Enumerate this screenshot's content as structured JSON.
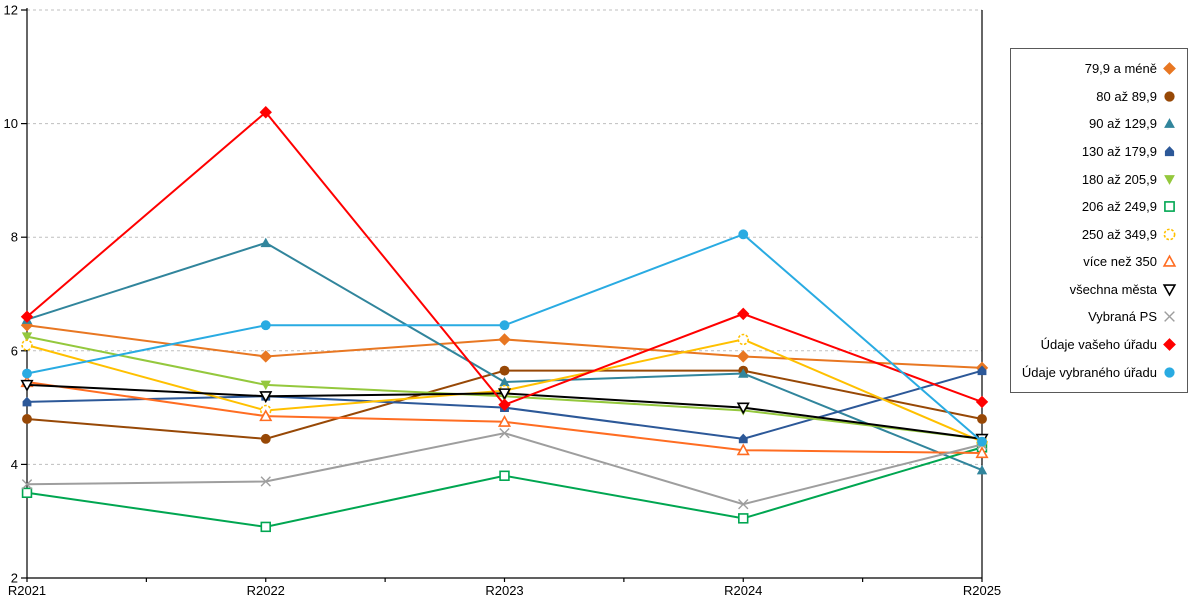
{
  "chart_data": {
    "type": "line",
    "title": "",
    "xlabel": "",
    "ylabel": "",
    "categories": [
      "R2021",
      "R2022",
      "R2023",
      "R2024",
      "R2025"
    ],
    "y_axis": {
      "min": 2,
      "max": 12,
      "step": 2,
      "tick_labels": [
        "2",
        "4",
        "6",
        "8",
        "10",
        "12"
      ]
    },
    "grid": "horizontal-dashed",
    "legend_position": "right",
    "series": [
      {
        "name": "79,9 a méně",
        "color": "#E87722",
        "marker": "diamond",
        "filled": true,
        "values": [
          6.45,
          5.9,
          6.2,
          5.9,
          5.7
        ]
      },
      {
        "name": "80 až 89,9",
        "color": "#974806",
        "marker": "circle",
        "filled": true,
        "values": [
          4.8,
          4.45,
          5.65,
          5.65,
          4.8
        ]
      },
      {
        "name": "90 až 129,9",
        "color": "#31859C",
        "marker": "triangle-up",
        "filled": true,
        "values": [
          6.55,
          7.9,
          5.45,
          5.6,
          3.9
        ]
      },
      {
        "name": "130 až 179,9",
        "color": "#2C5898",
        "marker": "pentagon",
        "filled": true,
        "values": [
          5.1,
          5.2,
          5.0,
          4.45,
          5.65
        ]
      },
      {
        "name": "180 až 205,9",
        "color": "#94C83D",
        "marker": "triangle-down",
        "filled": true,
        "values": [
          6.25,
          5.4,
          5.2,
          4.95,
          4.45
        ]
      },
      {
        "name": "206 až 249,9",
        "color": "#00A651",
        "marker": "square",
        "filled": false,
        "values": [
          3.5,
          2.9,
          3.8,
          3.05,
          4.3
        ]
      },
      {
        "name": "250 až 349,9",
        "color": "#FFC000",
        "marker": "circle-dashed",
        "filled": false,
        "values": [
          6.1,
          4.95,
          5.3,
          6.2,
          4.4
        ]
      },
      {
        "name": "více než 350",
        "color": "#FF6D22",
        "marker": "triangle-up",
        "filled": false,
        "values": [
          5.45,
          4.85,
          4.75,
          4.25,
          4.2
        ]
      },
      {
        "name": "všechna města",
        "color": "#000000",
        "marker": "triangle-down",
        "filled": false,
        "values": [
          5.4,
          5.2,
          5.25,
          5.0,
          4.45
        ]
      },
      {
        "name": "Vybraná PS",
        "color": "#9E9E9E",
        "marker": "x",
        "filled": false,
        "values": [
          3.65,
          3.7,
          4.55,
          3.3,
          4.35
        ]
      },
      {
        "name": "Údaje vašeho úřadu",
        "color": "#FF0000",
        "marker": "diamond",
        "filled": true,
        "values": [
          6.6,
          10.2,
          5.05,
          6.65,
          5.1
        ]
      },
      {
        "name": "Údaje vybraného úřadu",
        "color": "#29ABE2",
        "marker": "circle",
        "filled": true,
        "values": [
          5.6,
          6.45,
          6.45,
          8.05,
          4.4
        ]
      }
    ]
  }
}
